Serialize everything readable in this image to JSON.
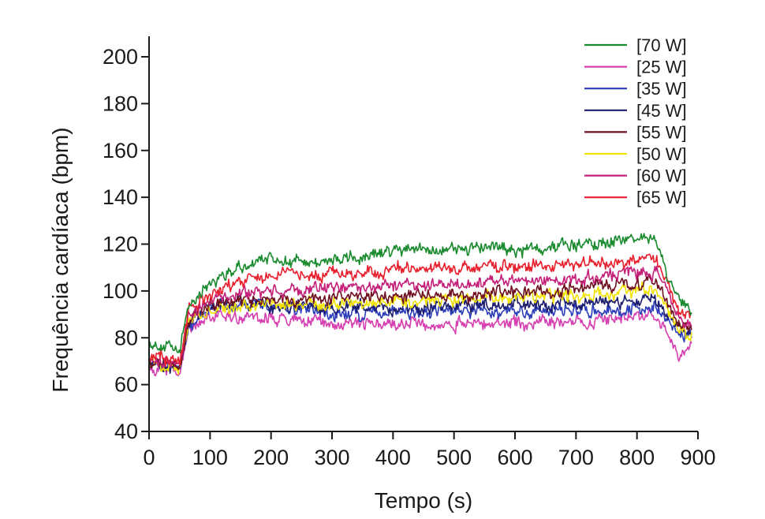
{
  "chart_data": {
    "type": "line",
    "title": "",
    "xlabel": "Tempo (s)",
    "ylabel": "Frequência cardíaca (bpm)",
    "xlim": [
      0,
      900
    ],
    "ylim": [
      40,
      200
    ],
    "xticks": [
      0,
      100,
      200,
      300,
      400,
      500,
      600,
      700,
      800,
      900
    ],
    "yticks": [
      40,
      60,
      80,
      100,
      120,
      140,
      160,
      180,
      200
    ],
    "grid": false,
    "legend_position": "top-right",
    "x": [
      0,
      50,
      65,
      100,
      150,
      200,
      250,
      300,
      350,
      400,
      450,
      500,
      550,
      600,
      650,
      700,
      750,
      800,
      830,
      850,
      870,
      890
    ],
    "series": [
      {
        "name": "[70 W]",
        "color": "#1a8a2e",
        "values": [
          78,
          74,
          94,
          104,
          110,
          114,
          112,
          113,
          114,
          117,
          118,
          118,
          119,
          117,
          119,
          120,
          121,
          123,
          122,
          104,
          96,
          92
        ]
      },
      {
        "name": "[25 W]",
        "color": "#d63fb0",
        "values": [
          68,
          66,
          84,
          89,
          89,
          88,
          88,
          86,
          86,
          86,
          86,
          86,
          86,
          86,
          87,
          87,
          88,
          89,
          90,
          82,
          72,
          76
        ]
      },
      {
        "name": "[35 W]",
        "color": "#2b3db8",
        "values": [
          70,
          67,
          86,
          92,
          94,
          93,
          92,
          90,
          90,
          91,
          91,
          91,
          92,
          91,
          91,
          92,
          92,
          93,
          94,
          88,
          82,
          80
        ]
      },
      {
        "name": "[45 W]",
        "color": "#1c1c6e",
        "values": [
          69,
          66,
          87,
          93,
          95,
          94,
          94,
          93,
          93,
          93,
          93,
          94,
          94,
          94,
          94,
          94,
          95,
          96,
          97,
          90,
          84,
          82
        ]
      },
      {
        "name": "[55 W]",
        "color": "#6e1020",
        "values": [
          70,
          68,
          88,
          94,
          96,
          96,
          96,
          97,
          97,
          98,
          98,
          99,
          99,
          100,
          100,
          101,
          102,
          103,
          104,
          96,
          86,
          84
        ]
      },
      {
        "name": "[50 W]",
        "color": "#f2e300",
        "values": [
          69,
          67,
          88,
          92,
          94,
          95,
          94,
          94,
          95,
          95,
          96,
          96,
          97,
          97,
          98,
          98,
          99,
          100,
          100,
          92,
          82,
          80
        ]
      },
      {
        "name": "[60 W]",
        "color": "#c4207a",
        "values": [
          71,
          69,
          90,
          96,
          99,
          100,
          100,
          101,
          101,
          102,
          103,
          103,
          104,
          104,
          105,
          105,
          106,
          108,
          108,
          100,
          88,
          84
        ]
      },
      {
        "name": "[65 W]",
        "color": "#e8202e",
        "values": [
          72,
          70,
          92,
          99,
          104,
          107,
          107,
          107,
          108,
          109,
          110,
          110,
          110,
          110,
          111,
          111,
          112,
          113,
          114,
          104,
          90,
          86
        ]
      }
    ]
  }
}
